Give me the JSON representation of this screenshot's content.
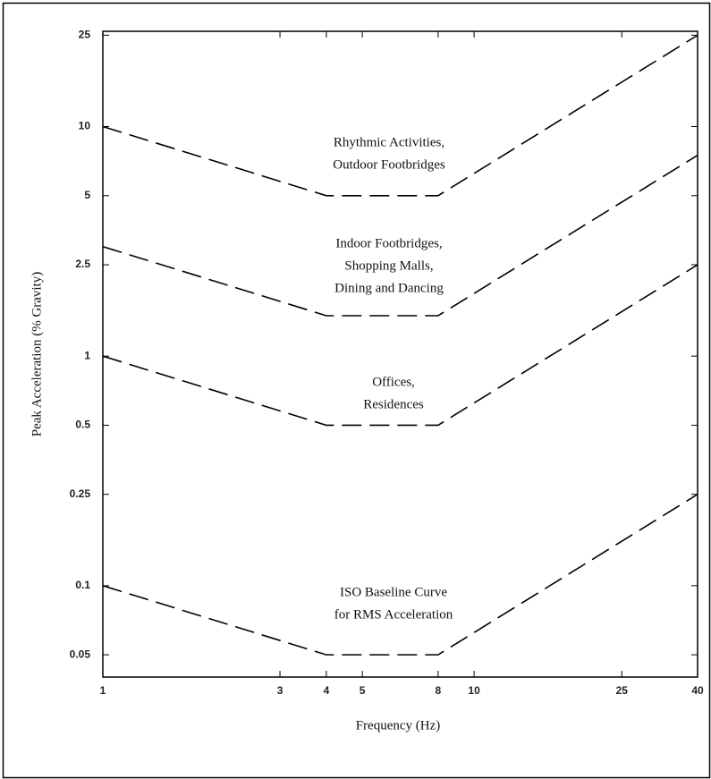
{
  "chart_data": {
    "type": "line",
    "xlabel": "Frequency (Hz)",
    "ylabel": "Peak Acceleration (% Gravity)",
    "x": [
      1,
      4,
      8,
      40
    ],
    "series": [
      {
        "color": "#000000",
        "values": [
          10,
          5,
          5,
          25
        ]
      },
      {
        "color": "#000000",
        "values": [
          3,
          1.5,
          1.5,
          7.5
        ]
      },
      {
        "color": "#000000",
        "values": [
          1,
          0.5,
          0.5,
          2.5
        ]
      },
      {
        "color": "#000000",
        "values": [
          0.1,
          0.05,
          0.05,
          0.25
        ]
      }
    ],
    "linestyle": "dashed",
    "xscale": "log",
    "yscale": "log",
    "xlim": [
      1,
      40
    ],
    "ylim": [
      0.04,
      26
    ],
    "xticks": [
      1,
      3,
      4,
      5,
      8,
      10,
      25,
      40
    ],
    "yticks": [
      0.05,
      0.1,
      0.25,
      0.5,
      1,
      2.5,
      5,
      10,
      25
    ],
    "grid": false,
    "annotations": [
      [
        "Rhythmic Activities,",
        "Outdoor Footbridges"
      ],
      [
        "Indoor Footbridges,",
        "Shopping Malls,",
        "Dining and Dancing"
      ],
      [
        "Offices,",
        "Residences"
      ],
      [
        "ISO Baseline Curve",
        "for RMS Acceleration"
      ]
    ]
  }
}
